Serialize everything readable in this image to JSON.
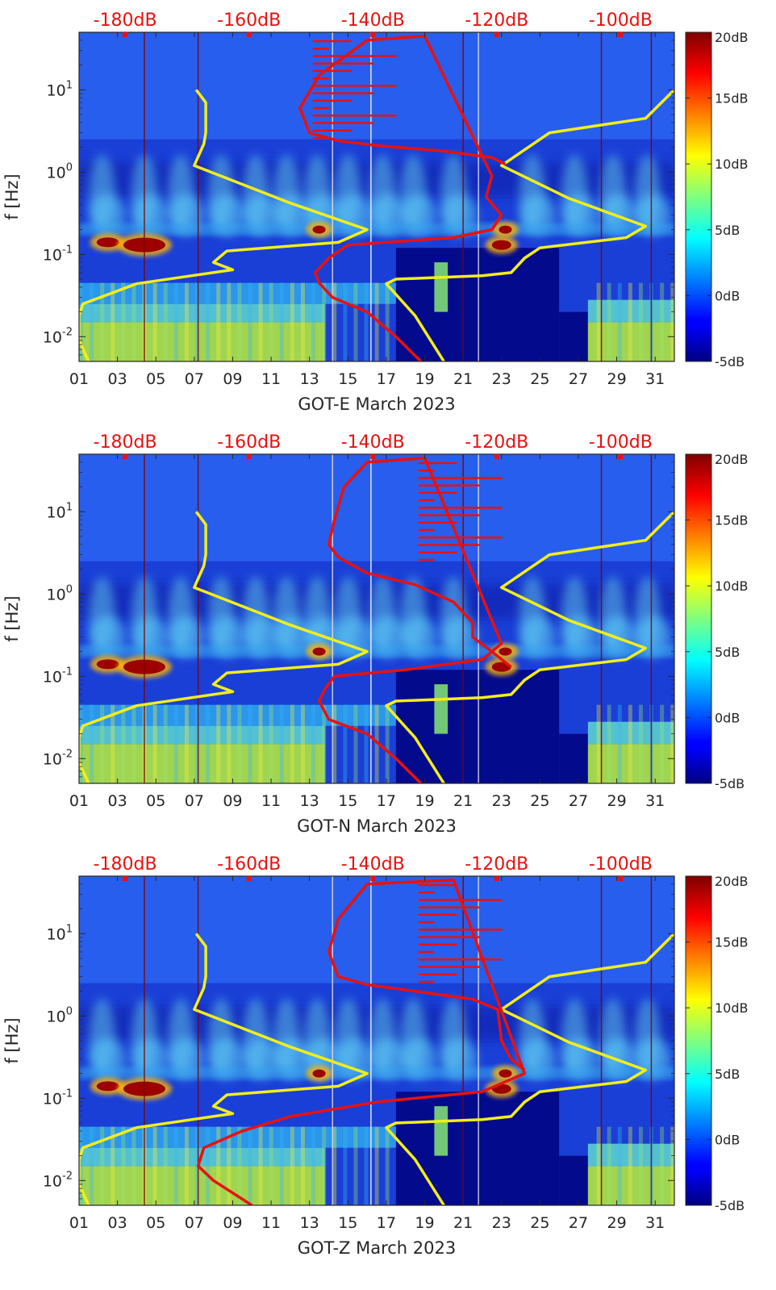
{
  "chart_data": [
    {
      "type": "heatmap",
      "xlabel": "GOT-E March 2023",
      "ylabel": "f [Hz]",
      "x_ticks": [
        "01",
        "03",
        "05",
        "07",
        "09",
        "11",
        "13",
        "15",
        "17",
        "19",
        "21",
        "23",
        "25",
        "27",
        "29",
        "31"
      ],
      "y_ticks": [
        "10^-2",
        "10^-1",
        "10^0",
        "10^1"
      ],
      "y_scale": "log",
      "ylim": [
        0.005,
        50
      ],
      "xlim": [
        1,
        32
      ],
      "colorbar": {
        "ticks": [
          "20dB",
          "15dB",
          "10dB",
          "5dB",
          "0dB",
          "-5dB"
        ],
        "range": [
          -5,
          20
        ]
      },
      "top_ticks": [
        "-180dB",
        "-160dB",
        "-140dB",
        "-120dB",
        "-100dB"
      ],
      "series": [
        {
          "color": "#f2ee1c",
          "points": [
            [
              7.1,
              10
            ],
            [
              7.6,
              7
            ],
            [
              7.6,
              3
            ],
            [
              7.5,
              2.2
            ],
            [
              7.0,
              1.2
            ],
            [
              12,
              0.42
            ],
            [
              16.0,
              0.2
            ],
            [
              14.5,
              0.14
            ],
            [
              8.7,
              0.11
            ],
            [
              8.0,
              0.08
            ],
            [
              9.0,
              0.065
            ],
            [
              4.0,
              0.044
            ],
            [
              1.2,
              0.025
            ],
            [
              1.0,
              0.018
            ],
            [
              1.0,
              0.009
            ],
            [
              1.5,
              0.005
            ]
          ]
        },
        {
          "color": "#f2ee1c",
          "points": [
            [
              20,
              0.005
            ],
            [
              18.5,
              0.018
            ],
            [
              17.0,
              0.044
            ],
            [
              17.5,
              0.05
            ],
            [
              22,
              0.055
            ],
            [
              23.5,
              0.06
            ],
            [
              24.2,
              0.09
            ],
            [
              25.0,
              0.12
            ],
            [
              29.5,
              0.16
            ],
            [
              30.5,
              0.22
            ],
            [
              26.5,
              0.48
            ],
            [
              23.0,
              1.2
            ],
            [
              25.5,
              3.0
            ],
            [
              30.5,
              4.5
            ],
            [
              32,
              10
            ]
          ]
        }
      ],
      "red_curve": [
        [
          23.2,
          1.25
        ],
        [
          22.5,
          1.5
        ],
        [
          20,
          1.8
        ],
        [
          16.5,
          2.1
        ],
        [
          14.5,
          2.4
        ],
        [
          13.0,
          3.0
        ],
        [
          12.5,
          6.0
        ],
        [
          13.5,
          15
        ],
        [
          16.0,
          40
        ],
        [
          19.0,
          45
        ],
        [
          22.5,
          0.9
        ],
        [
          22.2,
          0.5
        ],
        [
          23.0,
          0.3
        ],
        [
          22.5,
          0.2
        ],
        [
          20.5,
          0.16
        ],
        [
          15.0,
          0.13
        ],
        [
          14.0,
          0.09
        ],
        [
          13.3,
          0.06
        ],
        [
          13.5,
          0.045
        ],
        [
          14.2,
          0.03
        ],
        [
          16.0,
          0.02
        ],
        [
          17.5,
          0.01
        ],
        [
          18.8,
          0.005
        ]
      ]
    },
    {
      "type": "heatmap",
      "xlabel": "GOT-N March 2023",
      "ylabel": "f [Hz]",
      "x_ticks": [
        "01",
        "03",
        "05",
        "07",
        "09",
        "11",
        "13",
        "15",
        "17",
        "19",
        "21",
        "23",
        "25",
        "27",
        "29",
        "31"
      ],
      "y_ticks": [
        "10^-2",
        "10^-1",
        "10^0",
        "10^1"
      ],
      "y_scale": "log",
      "ylim": [
        0.005,
        50
      ],
      "xlim": [
        1,
        32
      ],
      "colorbar": {
        "ticks": [
          "20dB",
          "15dB",
          "10dB",
          "5dB",
          "0dB",
          "-5dB"
        ],
        "range": [
          -5,
          20
        ]
      },
      "top_ticks": [
        "-180dB",
        "-160dB",
        "-140dB",
        "-120dB",
        "-100dB"
      ],
      "series": [
        {
          "color": "#f2ee1c",
          "points": [
            [
              7.1,
              10
            ],
            [
              7.6,
              7
            ],
            [
              7.6,
              3
            ],
            [
              7.5,
              2.2
            ],
            [
              7.0,
              1.2
            ],
            [
              12,
              0.42
            ],
            [
              16.0,
              0.2
            ],
            [
              14.5,
              0.14
            ],
            [
              8.7,
              0.11
            ],
            [
              8.0,
              0.08
            ],
            [
              9.0,
              0.065
            ],
            [
              4.0,
              0.044
            ],
            [
              1.2,
              0.025
            ],
            [
              1.0,
              0.018
            ],
            [
              1.0,
              0.009
            ],
            [
              1.5,
              0.005
            ]
          ]
        },
        {
          "color": "#f2ee1c",
          "points": [
            [
              20,
              0.005
            ],
            [
              18.5,
              0.018
            ],
            [
              17.0,
              0.044
            ],
            [
              17.5,
              0.05
            ],
            [
              22,
              0.055
            ],
            [
              23.5,
              0.06
            ],
            [
              24.2,
              0.09
            ],
            [
              25.0,
              0.12
            ],
            [
              29.5,
              0.16
            ],
            [
              30.5,
              0.22
            ],
            [
              26.5,
              0.48
            ],
            [
              23.0,
              1.2
            ],
            [
              25.5,
              3.0
            ],
            [
              30.5,
              4.5
            ],
            [
              32,
              10
            ]
          ]
        }
      ],
      "red_curve": [
        [
          23.5,
          0.13
        ],
        [
          22.5,
          0.2
        ],
        [
          21.5,
          0.3
        ],
        [
          21.5,
          0.45
        ],
        [
          20.5,
          0.8
        ],
        [
          18.5,
          1.3
        ],
        [
          16.0,
          1.8
        ],
        [
          14.5,
          2.8
        ],
        [
          14.0,
          4.0
        ],
        [
          14.3,
          8
        ],
        [
          14.8,
          20
        ],
        [
          16.0,
          40
        ],
        [
          19.0,
          45
        ],
        [
          23.0,
          0.25
        ],
        [
          22.0,
          0.16
        ],
        [
          18.0,
          0.12
        ],
        [
          14.3,
          0.1
        ],
        [
          13.8,
          0.07
        ],
        [
          13.5,
          0.05
        ],
        [
          14.0,
          0.03
        ],
        [
          16.0,
          0.02
        ],
        [
          17.5,
          0.01
        ],
        [
          18.8,
          0.005
        ]
      ]
    },
    {
      "type": "heatmap",
      "xlabel": "GOT-Z March 2023",
      "ylabel": "f [Hz]",
      "x_ticks": [
        "01",
        "03",
        "05",
        "07",
        "09",
        "11",
        "13",
        "15",
        "17",
        "19",
        "21",
        "23",
        "25",
        "27",
        "29",
        "31"
      ],
      "y_ticks": [
        "10^-2",
        "10^-1",
        "10^0",
        "10^1"
      ],
      "y_scale": "log",
      "ylim": [
        0.005,
        50
      ],
      "xlim": [
        1,
        32
      ],
      "colorbar": {
        "ticks": [
          "20dB",
          "15dB",
          "10dB",
          "5dB",
          "0dB",
          "-5dB"
        ],
        "range": [
          -5,
          20
        ]
      },
      "top_ticks": [
        "-180dB",
        "-160dB",
        "-140dB",
        "-120dB",
        "-100dB"
      ],
      "series": [
        {
          "color": "#f2ee1c",
          "points": [
            [
              7.1,
              10
            ],
            [
              7.6,
              7
            ],
            [
              7.6,
              3
            ],
            [
              7.5,
              2.2
            ],
            [
              7.0,
              1.2
            ],
            [
              12,
              0.42
            ],
            [
              16.0,
              0.2
            ],
            [
              14.5,
              0.14
            ],
            [
              8.7,
              0.11
            ],
            [
              8.0,
              0.08
            ],
            [
              9.0,
              0.065
            ],
            [
              4.0,
              0.044
            ],
            [
              1.2,
              0.025
            ],
            [
              1.0,
              0.018
            ],
            [
              1.0,
              0.009
            ],
            [
              1.5,
              0.005
            ]
          ]
        },
        {
          "color": "#f2ee1c",
          "points": [
            [
              20,
              0.005
            ],
            [
              18.5,
              0.018
            ],
            [
              17.0,
              0.044
            ],
            [
              17.5,
              0.05
            ],
            [
              22,
              0.055
            ],
            [
              23.5,
              0.06
            ],
            [
              24.2,
              0.09
            ],
            [
              25.0,
              0.12
            ],
            [
              29.5,
              0.16
            ],
            [
              30.5,
              0.22
            ],
            [
              26.5,
              0.48
            ],
            [
              23.0,
              1.2
            ],
            [
              25.5,
              3.0
            ],
            [
              30.5,
              4.5
            ],
            [
              32,
              10
            ]
          ]
        }
      ],
      "red_curve": [
        [
          24.2,
          0.22
        ],
        [
          23.5,
          0.3
        ],
        [
          23.0,
          0.5
        ],
        [
          22.8,
          1.2
        ],
        [
          21.5,
          1.6
        ],
        [
          18.5,
          2.0
        ],
        [
          16.0,
          2.4
        ],
        [
          14.5,
          3.0
        ],
        [
          14.0,
          6.0
        ],
        [
          14.5,
          15
        ],
        [
          16.0,
          40
        ],
        [
          20.5,
          45
        ],
        [
          24.2,
          0.2
        ],
        [
          22.0,
          0.12
        ],
        [
          16.5,
          0.09
        ],
        [
          12.0,
          0.06
        ],
        [
          9.5,
          0.04
        ],
        [
          7.5,
          0.025
        ],
        [
          7.2,
          0.015
        ],
        [
          8.0,
          0.01
        ],
        [
          10.0,
          0.005
        ]
      ]
    }
  ]
}
